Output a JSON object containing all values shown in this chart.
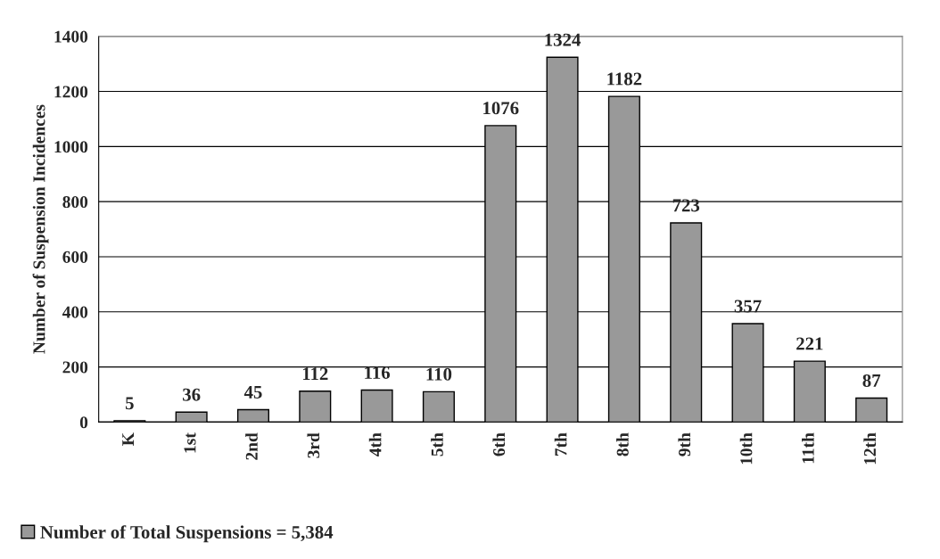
{
  "chart_data": {
    "type": "bar",
    "ylabel": "Number of Suspension Incidences",
    "categories": [
      "K",
      "1st",
      "2nd",
      "3rd",
      "4th",
      "5th",
      "6th",
      "7th",
      "8th",
      "9th",
      "10th",
      "11th",
      "12th"
    ],
    "series": [
      {
        "name": "Number of Total Suspensions = 5,384",
        "color": "#999999",
        "values": [
          5,
          36,
          45,
          112,
          116,
          110,
          1076,
          1324,
          1182,
          723,
          357,
          221,
          87
        ]
      }
    ],
    "ylim": [
      0,
      1400
    ],
    "yticks": [
      0,
      200,
      400,
      600,
      800,
      1000,
      1200,
      1400
    ],
    "grid": "y",
    "data_labels": true,
    "legend": "bottom left"
  }
}
